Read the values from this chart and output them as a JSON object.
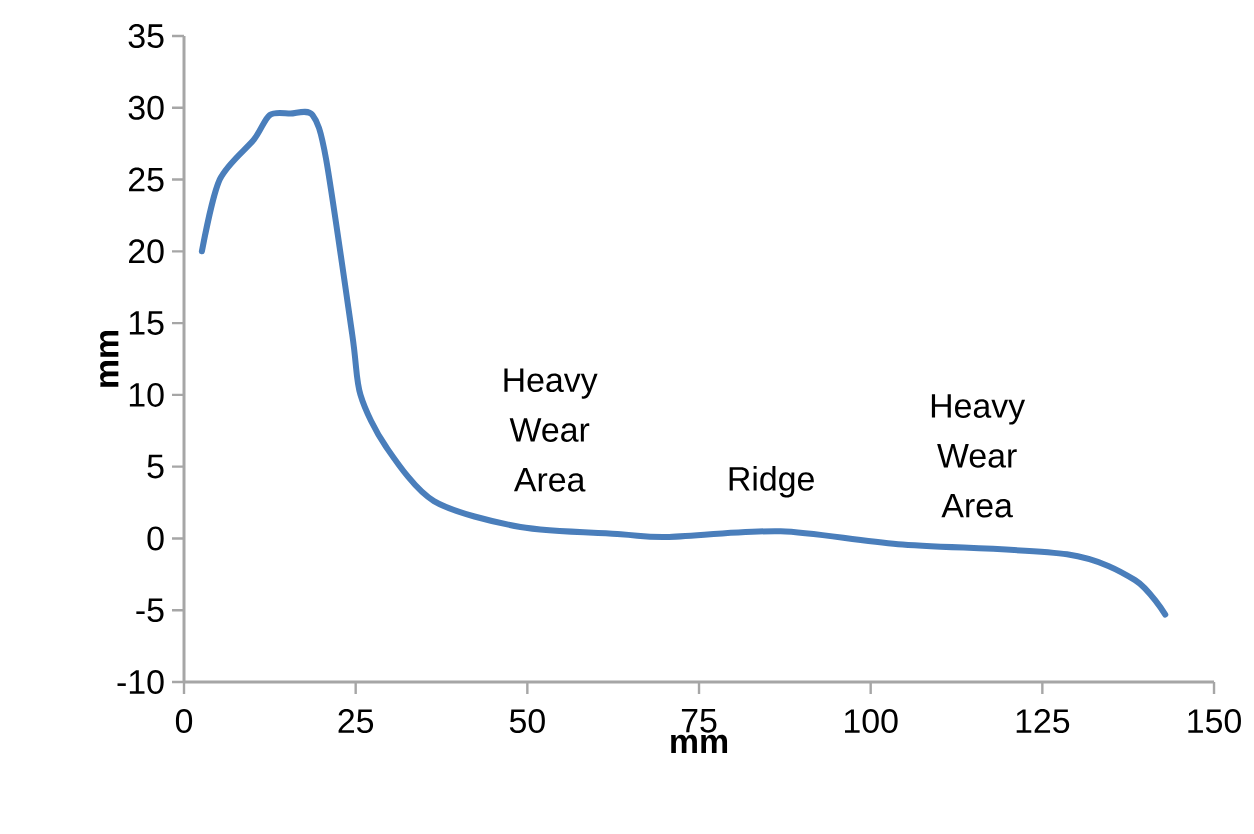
{
  "chart_data": {
    "type": "line",
    "xlabel": "mm",
    "ylabel": "mm",
    "series": [
      {
        "color": "#4a7ebb",
        "x": [
          2.6,
          5.2,
          10.2,
          12.5,
          15.5,
          18.7,
          20.7,
          24.5,
          25.7,
          29.4,
          36.4,
          49,
          63.6,
          70.3,
          86.9,
          104,
          128.6,
          138.5,
          142.9
        ],
        "values": [
          20,
          25,
          27.8,
          29.5,
          29.6,
          29.5,
          26.4,
          14.2,
          10,
          6.4,
          2.6,
          0.8,
          0.3,
          0.1,
          0.5,
          -0.4,
          -1.1,
          -2.9,
          -5.3
        ]
      }
    ],
    "xlim": [
      0,
      150
    ],
    "ylim": [
      -10,
      35
    ],
    "xticks": [
      0,
      25,
      50,
      75,
      100,
      125,
      150
    ],
    "yticks": [
      -10,
      -5,
      0,
      5,
      10,
      15,
      20,
      25,
      30,
      35
    ],
    "grid": false,
    "marker": "none",
    "line_style": "solid",
    "annotations": [
      "Heavy Wear Area",
      "Ridge",
      "Heavy Wear Area"
    ]
  }
}
